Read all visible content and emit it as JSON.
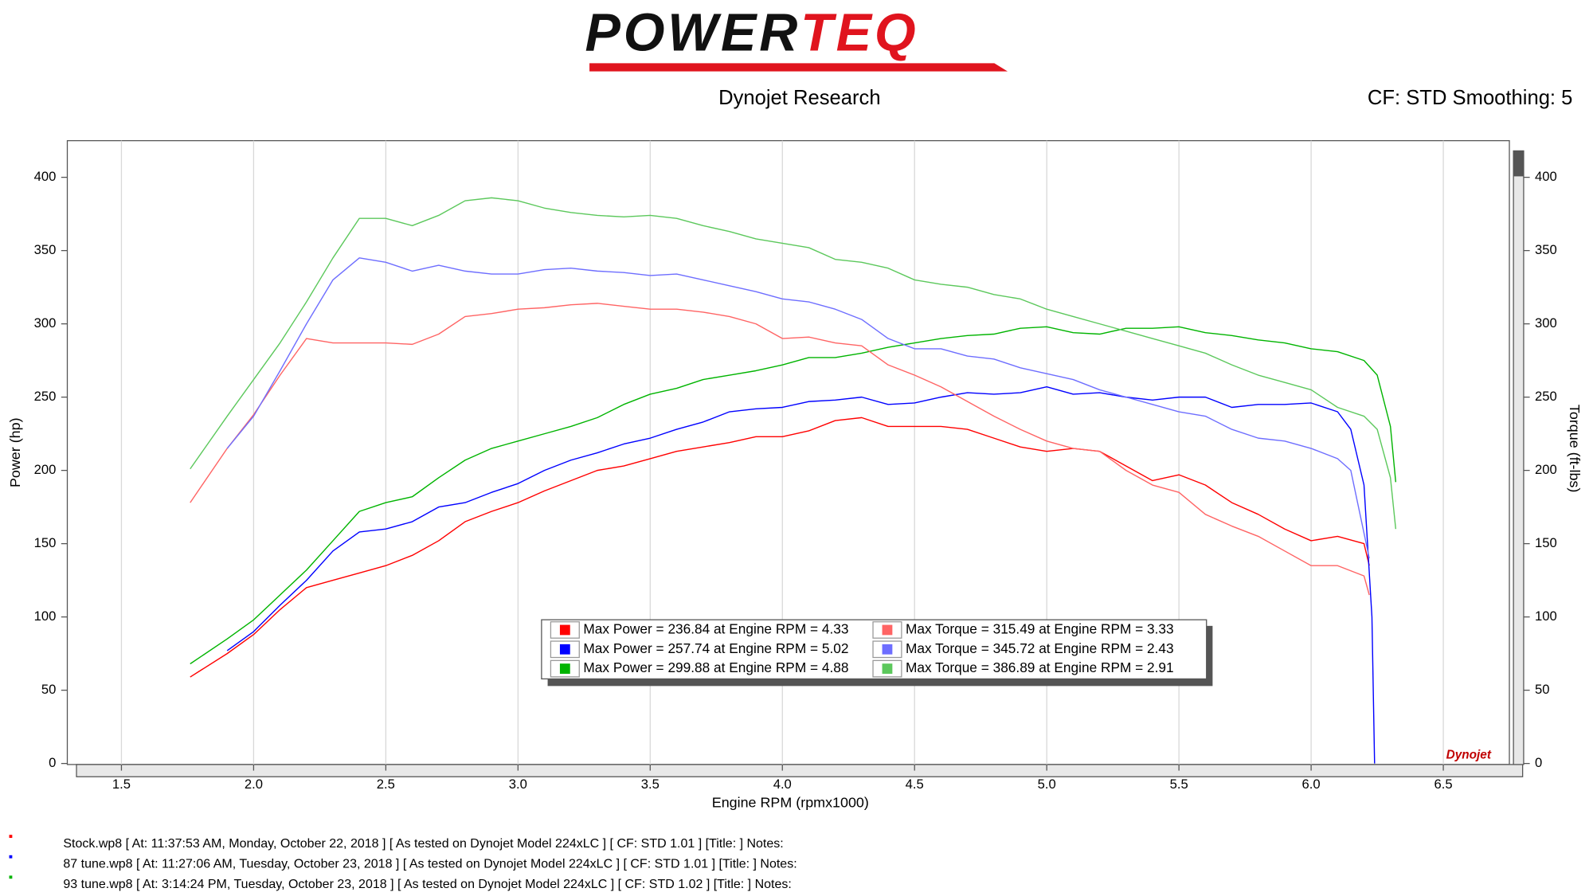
{
  "chart_data": {
    "type": "line",
    "logo": [
      "POWER",
      "TEQ"
    ],
    "title": "Dynojet Research",
    "subtitle": "CF: STD Smoothing: 5",
    "xlabel": "Engine RPM (rpmx1000)",
    "ylabel": "Power (hp)",
    "y2label": "Torque (ft-lbs)",
    "badge": "Dynojet",
    "xlim": [
      1.33,
      6.8
    ],
    "ylim": [
      0,
      425
    ],
    "y2lim": [
      0,
      425
    ],
    "xticks": [
      1.5,
      {
        "value": 2,
        "label": "2.0"
      },
      2.5,
      {
        "value": 3,
        "label": "3.0"
      },
      3.5,
      {
        "value": 4,
        "label": "4.0"
      },
      4.5,
      {
        "value": 5,
        "label": "5.0"
      },
      5.5,
      {
        "value": 6,
        "label": "6.0"
      },
      6.5
    ],
    "yticks": [
      0,
      50,
      100,
      150,
      200,
      250,
      300,
      350,
      400
    ],
    "y2ticks": [
      0,
      50,
      100,
      150,
      200,
      250,
      300,
      350,
      400
    ],
    "grid": true,
    "series": [
      {
        "name": "Max Power = 236.84 at Engine RPM = 4.33",
        "color": "#ff0000",
        "x": [
          1.76,
          1.9,
          2.0,
          2.1,
          2.2,
          2.3,
          2.4,
          2.5,
          2.6,
          2.7,
          2.8,
          2.9,
          3.0,
          3.1,
          3.2,
          3.3,
          3.4,
          3.5,
          3.6,
          3.7,
          3.8,
          3.9,
          4.0,
          4.1,
          4.2,
          4.3,
          4.4,
          4.5,
          4.6,
          4.7,
          4.8,
          4.9,
          5.0,
          5.1,
          5.2,
          5.3,
          5.4,
          5.5,
          5.6,
          5.7,
          5.8,
          5.9,
          6.0,
          6.1,
          6.2,
          6.22
        ],
        "values": [
          59,
          75,
          88,
          105,
          120,
          125,
          130,
          135,
          142,
          152,
          165,
          172,
          178,
          186,
          193,
          200,
          203,
          208,
          213,
          216,
          219,
          223,
          223,
          227,
          234,
          236,
          230,
          230,
          230,
          228,
          222,
          216,
          213,
          215,
          213,
          203,
          193,
          197,
          190,
          178,
          170,
          160,
          152,
          155,
          150,
          135
        ]
      },
      {
        "name": "Max Power = 257.74 at Engine RPM = 5.02",
        "color": "#0000ff",
        "x": [
          1.9,
          2.0,
          2.1,
          2.2,
          2.3,
          2.4,
          2.5,
          2.6,
          2.7,
          2.8,
          2.9,
          3.0,
          3.1,
          3.2,
          3.3,
          3.4,
          3.5,
          3.6,
          3.7,
          3.8,
          3.9,
          4.0,
          4.1,
          4.2,
          4.3,
          4.4,
          4.5,
          4.6,
          4.7,
          4.8,
          4.9,
          5.0,
          5.1,
          5.2,
          5.3,
          5.4,
          5.5,
          5.6,
          5.7,
          5.8,
          5.9,
          6.0,
          6.1,
          6.15,
          6.2,
          6.23,
          6.24
        ],
        "values": [
          77,
          90,
          108,
          125,
          145,
          158,
          160,
          165,
          175,
          178,
          185,
          191,
          200,
          207,
          212,
          218,
          222,
          228,
          233,
          240,
          242,
          243,
          247,
          248,
          250,
          245,
          246,
          250,
          253,
          252,
          253,
          257,
          252,
          253,
          250,
          248,
          250,
          250,
          243,
          245,
          245,
          246,
          240,
          228,
          190,
          100,
          0
        ]
      },
      {
        "name": "Max Power = 299.88 at Engine RPM = 4.88",
        "color": "#00b400",
        "x": [
          1.76,
          1.9,
          2.0,
          2.1,
          2.2,
          2.3,
          2.4,
          2.5,
          2.6,
          2.7,
          2.8,
          2.9,
          3.0,
          3.1,
          3.2,
          3.3,
          3.4,
          3.5,
          3.6,
          3.7,
          3.8,
          3.9,
          4.0,
          4.1,
          4.2,
          4.3,
          4.4,
          4.5,
          4.6,
          4.7,
          4.8,
          4.9,
          5.0,
          5.1,
          5.2,
          5.3,
          5.4,
          5.5,
          5.6,
          5.7,
          5.8,
          5.9,
          6.0,
          6.1,
          6.2,
          6.25,
          6.3,
          6.32
        ],
        "values": [
          68,
          85,
          98,
          115,
          132,
          152,
          172,
          178,
          182,
          195,
          207,
          215,
          220,
          225,
          230,
          236,
          245,
          252,
          256,
          262,
          265,
          268,
          272,
          277,
          277,
          280,
          284,
          287,
          290,
          292,
          293,
          297,
          298,
          294,
          293,
          297,
          297,
          298,
          294,
          292,
          289,
          287,
          283,
          281,
          275,
          265,
          230,
          192
        ]
      },
      {
        "name": "Max Torque = 315.49 at Engine RPM = 3.33",
        "color": "#ff6464",
        "axis": "y2",
        "x": [
          1.76,
          1.9,
          2.0,
          2.1,
          2.2,
          2.3,
          2.4,
          2.5,
          2.6,
          2.7,
          2.8,
          2.9,
          3.0,
          3.1,
          3.2,
          3.3,
          3.4,
          3.5,
          3.6,
          3.7,
          3.8,
          3.9,
          4.0,
          4.1,
          4.2,
          4.3,
          4.4,
          4.5,
          4.6,
          4.7,
          4.8,
          4.9,
          5.0,
          5.1,
          5.2,
          5.3,
          5.4,
          5.5,
          5.6,
          5.7,
          5.8,
          5.9,
          6.0,
          6.1,
          6.2,
          6.22
        ],
        "values": [
          178,
          215,
          238,
          265,
          290,
          287,
          287,
          287,
          286,
          293,
          305,
          307,
          310,
          311,
          313,
          314,
          312,
          310,
          310,
          308,
          305,
          300,
          290,
          291,
          287,
          285,
          272,
          265,
          257,
          247,
          237,
          228,
          220,
          215,
          213,
          200,
          190,
          185,
          170,
          162,
          155,
          145,
          135,
          135,
          128,
          115
        ]
      },
      {
        "name": "Max Torque = 345.72 at Engine RPM = 2.43",
        "color": "#6e6eff",
        "axis": "y2",
        "x": [
          1.9,
          2.0,
          2.1,
          2.2,
          2.3,
          2.4,
          2.5,
          2.6,
          2.7,
          2.8,
          2.9,
          3.0,
          3.1,
          3.2,
          3.3,
          3.4,
          3.5,
          3.6,
          3.7,
          3.8,
          3.9,
          4.0,
          4.1,
          4.2,
          4.3,
          4.4,
          4.5,
          4.6,
          4.7,
          4.8,
          4.9,
          5.0,
          5.1,
          5.2,
          5.3,
          5.4,
          5.5,
          5.6,
          5.7,
          5.8,
          5.9,
          6.0,
          6.1,
          6.15,
          6.22
        ],
        "values": [
          215,
          237,
          268,
          300,
          330,
          345,
          342,
          336,
          340,
          336,
          334,
          334,
          337,
          338,
          336,
          335,
          333,
          334,
          330,
          326,
          322,
          317,
          315,
          310,
          303,
          290,
          283,
          283,
          278,
          276,
          270,
          266,
          262,
          255,
          250,
          245,
          240,
          237,
          228,
          222,
          220,
          215,
          208,
          200,
          140
        ]
      },
      {
        "name": "Max Torque = 386.89 at Engine RPM = 2.91",
        "color": "#5cc85c",
        "axis": "y2",
        "x": [
          1.76,
          1.9,
          2.0,
          2.1,
          2.2,
          2.3,
          2.4,
          2.5,
          2.6,
          2.7,
          2.8,
          2.9,
          3.0,
          3.1,
          3.2,
          3.3,
          3.4,
          3.5,
          3.6,
          3.7,
          3.8,
          3.9,
          4.0,
          4.1,
          4.2,
          4.3,
          4.4,
          4.5,
          4.6,
          4.7,
          4.8,
          4.9,
          5.0,
          5.1,
          5.2,
          5.3,
          5.4,
          5.5,
          5.6,
          5.7,
          5.8,
          5.9,
          6.0,
          6.1,
          6.2,
          6.25,
          6.3,
          6.32
        ],
        "values": [
          201,
          237,
          262,
          287,
          315,
          345,
          372,
          372,
          367,
          374,
          384,
          386,
          384,
          379,
          376,
          374,
          373,
          374,
          372,
          367,
          363,
          358,
          355,
          352,
          344,
          342,
          338,
          330,
          327,
          325,
          320,
          317,
          310,
          305,
          300,
          295,
          290,
          285,
          280,
          272,
          265,
          260,
          255,
          243,
          237,
          228,
          195,
          160
        ]
      }
    ],
    "notes": [
      {
        "text": "Stock.wp8 [ At: 11:37:53 AM, Monday, October 22, 2018 ] [ As tested on Dynojet Model 224xLC ] [ CF: STD 1.01 ] [Title: ]  Notes:",
        "color": "#ff0000"
      },
      {
        "text": "87 tune.wp8 [ At: 11:27:06 AM, Tuesday, October 23, 2018 ] [ As tested on Dynojet Model 224xLC ] [ CF: STD 1.01 ] [Title: ]  Notes:",
        "color": "#0000ff"
      },
      {
        "text": "93 tune.wp8 [ At: 3:14:24 PM, Tuesday, October 23, 2018 ] [ As tested on Dynojet Model 224xLC ] [ CF: STD 1.02 ] [Title: ]  Notes:",
        "color": "#00b400"
      }
    ]
  }
}
